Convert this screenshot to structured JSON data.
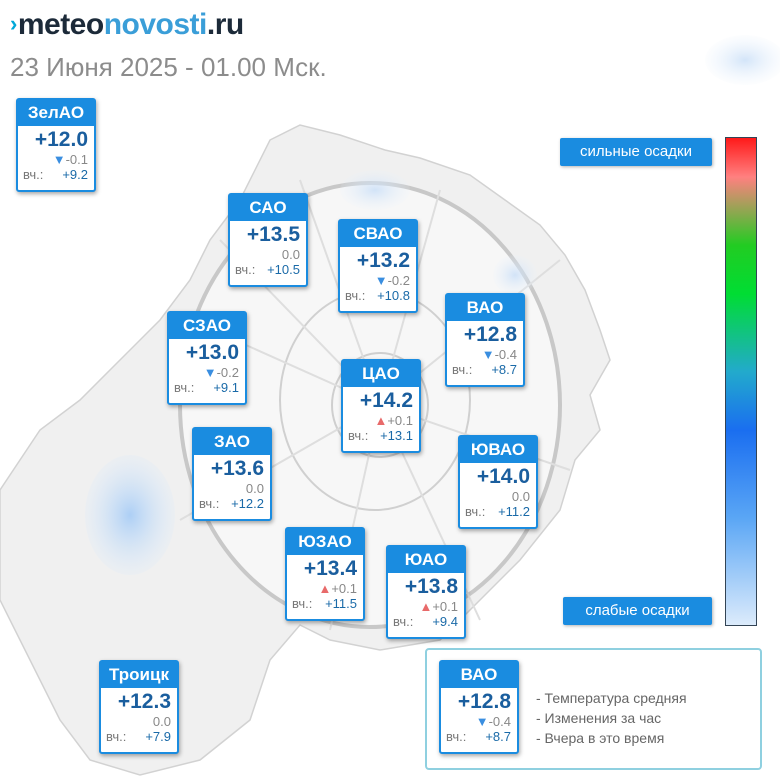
{
  "header": {
    "logo_part_a": "meteo",
    "logo_part_b": "novosti",
    "logo_part_c": ".ru",
    "date_text": "23 Июня 2025 - 01.00 Мск."
  },
  "yesterday_label": "вч.:",
  "districts": [
    {
      "id": "zelao",
      "name": "ЗелАО",
      "temp": "+12.0",
      "change_dir": "down",
      "change": "-0.1",
      "yesterday": "+9.2"
    },
    {
      "id": "sao",
      "name": "САО",
      "temp": "+13.5",
      "change_dir": "none",
      "change": "0.0",
      "yesterday": "+10.5"
    },
    {
      "id": "svao",
      "name": "СВАО",
      "temp": "+13.2",
      "change_dir": "down",
      "change": "-0.2",
      "yesterday": "+10.8"
    },
    {
      "id": "vao",
      "name": "ВАО",
      "temp": "+12.8",
      "change_dir": "down",
      "change": "-0.4",
      "yesterday": "+8.7"
    },
    {
      "id": "szao",
      "name": "СЗАО",
      "temp": "+13.0",
      "change_dir": "down",
      "change": "-0.2",
      "yesterday": "+9.1"
    },
    {
      "id": "cao",
      "name": "ЦАО",
      "temp": "+14.2",
      "change_dir": "up",
      "change": "+0.1",
      "yesterday": "+13.1"
    },
    {
      "id": "zao",
      "name": "ЗАО",
      "temp": "+13.6",
      "change_dir": "none",
      "change": "0.0",
      "yesterday": "+12.2"
    },
    {
      "id": "yuvao",
      "name": "ЮВАО",
      "temp": "+14.0",
      "change_dir": "none",
      "change": "0.0",
      "yesterday": "+11.2"
    },
    {
      "id": "yuzao",
      "name": "ЮЗАО",
      "temp": "+13.4",
      "change_dir": "up",
      "change": "+0.1",
      "yesterday": "+11.5"
    },
    {
      "id": "yuao",
      "name": "ЮАО",
      "temp": "+13.8",
      "change_dir": "up",
      "change": "+0.1",
      "yesterday": "+9.4"
    },
    {
      "id": "troitsk",
      "name": "Троицк",
      "temp": "+12.3",
      "change_dir": "none",
      "change": "0.0",
      "yesterday": "+7.9"
    }
  ],
  "precip_legend": {
    "top_label": "сильные осадки",
    "bottom_label": "слабые осадки",
    "colors": [
      "#ff1a1a",
      "#22cc22",
      "#1a6ef0",
      "#dcebfb"
    ]
  },
  "key": {
    "example": {
      "name": "ВАО",
      "temp": "+12.8",
      "change_dir": "down",
      "change": "-0.4",
      "yesterday": "+8.7"
    },
    "lines": [
      "- Температура средняя",
      "- Изменения за час",
      "- Вчера в это время"
    ]
  },
  "colors": {
    "card_header": "#1a8ce0",
    "temp_text": "#1a5e9e",
    "arrow_down": "#3a8ee0",
    "arrow_up": "#e86a6a"
  }
}
